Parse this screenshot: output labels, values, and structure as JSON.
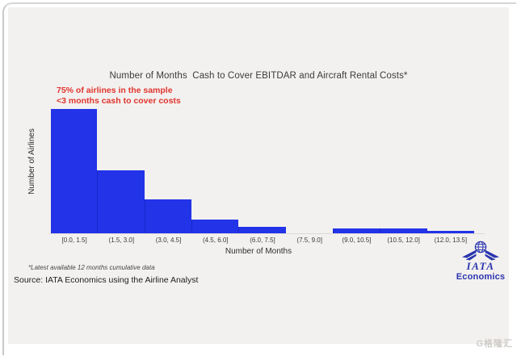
{
  "chart": {
    "title": "Number of Months  Cash to Cover EBITDAR and Aircraft Rental Costs*",
    "annotation_line1": "75% of airlines in the sample",
    "annotation_line2": "<3 months cash to cover costs",
    "y_axis_label": "Number of Airlines",
    "x_axis_label": "Number of Months",
    "footnote": "*Latest available 12 months cumulative data",
    "source": "Source: IATA Economics using the Airline Analyst"
  },
  "chart_data": {
    "type": "bar",
    "subtype": "histogram",
    "title": "Number of Months  Cash to Cover EBITDAR and Aircraft Rental Costs*",
    "xlabel": "Number of Months",
    "ylabel": "Number of Airlines",
    "categories": [
      "[0.0, 1.5]",
      "(1.5, 3.0]",
      "(3.0, 4.5]",
      "(4.5, 6.0]",
      "(6.0, 7.5]",
      "(7.5, 9.0]",
      "(9.0, 10.5]",
      "(10.5, 12.0]",
      "(12.0, 13.5]"
    ],
    "values": [
      100,
      51,
      27,
      11,
      5,
      0,
      4,
      4,
      2
    ],
    "values_note": "relative bar heights, % of tallest bin (y axis shows no tick labels)",
    "ylim": [
      0,
      103
    ],
    "grid": false,
    "legend": false,
    "annotations": [
      "75% of airlines in the sample",
      "<3 months cash to cover costs"
    ],
    "bar_color": "#2233e8",
    "annotation_color": "#e0352f",
    "plot_background": "#f3f1ef"
  },
  "logo": {
    "brand": "IATA",
    "sub": "Economics",
    "color": "#2a35ae"
  },
  "frame": {
    "watermark": "G格隆汇"
  }
}
